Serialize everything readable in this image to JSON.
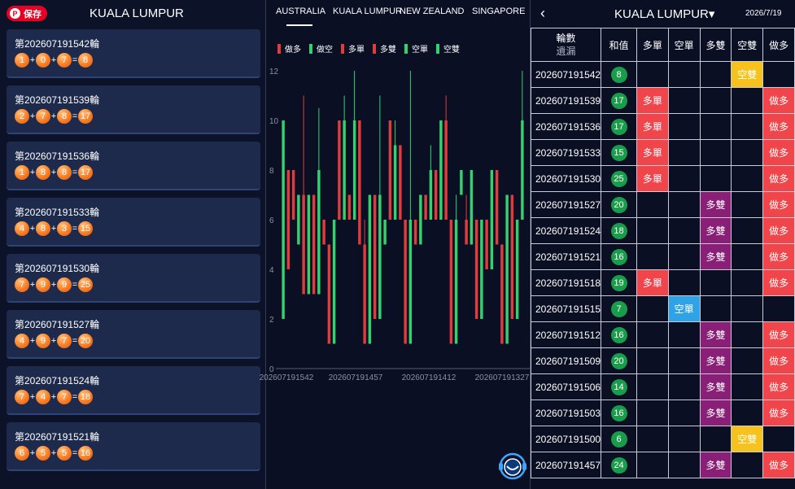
{
  "left_panel": {
    "save_label": "保存",
    "pin_glyph": "P",
    "title": "KUALA LUMPUR",
    "cards": [
      {
        "title": "第202607191542輪",
        "n1": "1",
        "n2": "0",
        "n3": "7",
        "sum": "8"
      },
      {
        "title": "第202607191539輪",
        "n1": "2",
        "n2": "7",
        "n3": "8",
        "sum": "17"
      },
      {
        "title": "第202607191536輪",
        "n1": "1",
        "n2": "8",
        "n3": "8",
        "sum": "17"
      },
      {
        "title": "第202607191533輪",
        "n1": "4",
        "n2": "8",
        "n3": "3",
        "sum": "15"
      },
      {
        "title": "第202607191530輪",
        "n1": "7",
        "n2": "9",
        "n3": "9",
        "sum": "25"
      },
      {
        "title": "第202607191527輪",
        "n1": "4",
        "n2": "9",
        "n3": "7",
        "sum": "20"
      },
      {
        "title": "第202607191524輪",
        "n1": "7",
        "n2": "4",
        "n3": "7",
        "sum": "18"
      },
      {
        "title": "第202607191521輪",
        "n1": "6",
        "n2": "5",
        "n3": "5",
        "sum": "16"
      }
    ],
    "plus": "+",
    "equals": "="
  },
  "middle_panel": {
    "tabs": [
      "AUSTRALIA",
      "KUALA LUMPUR",
      "NEW ZEALAND",
      "SINGAPORE"
    ],
    "active_tab": 0,
    "legend": [
      {
        "label": "做多",
        "color": "#e03c3c"
      },
      {
        "label": "做空",
        "color": "#35d06f"
      },
      {
        "label": "多單",
        "color": "#e03c3c"
      },
      {
        "label": "多雙",
        "color": "#e03c3c"
      },
      {
        "label": "空單",
        "color": "#35d06f"
      },
      {
        "label": "空雙",
        "color": "#35d06f"
      }
    ],
    "float_icon": "support-robot-icon"
  },
  "chart_data": {
    "type": "candlestick",
    "y_ticks": [
      "0",
      "2",
      "4",
      "6",
      "8",
      "10",
      "12"
    ],
    "ylim": [
      0,
      12
    ],
    "x_tick_labels": [
      "202607191542",
      "202607191457",
      "202607191412",
      "202607191327"
    ],
    "colors": {
      "up": "#35d06f",
      "down": "#e03c3c"
    },
    "candles": [
      {
        "o": 2,
        "c": 10,
        "h": 10,
        "l": 2,
        "up": true
      },
      {
        "o": 8,
        "c": 4,
        "h": 8,
        "l": 4,
        "up": false
      },
      {
        "o": 8,
        "c": 6,
        "h": 8,
        "l": 6,
        "up": false
      },
      {
        "o": 5,
        "c": 7,
        "h": 7,
        "l": 5,
        "up": true
      },
      {
        "o": 7,
        "c": 3,
        "h": 11,
        "l": 3,
        "up": false
      },
      {
        "o": 3,
        "c": 7,
        "h": 7,
        "l": 3,
        "up": true
      },
      {
        "o": 7,
        "c": 3,
        "h": 7,
        "l": 3,
        "up": false
      },
      {
        "o": 3,
        "c": 8,
        "h": 10.5,
        "l": 3,
        "up": true
      },
      {
        "o": 6,
        "c": 5,
        "h": 6,
        "l": 5,
        "up": false
      },
      {
        "o": 5,
        "c": 1,
        "h": 5,
        "l": 1,
        "up": false
      },
      {
        "o": 1,
        "c": 6,
        "h": 6,
        "l": 1,
        "up": true
      },
      {
        "o": 10,
        "c": 6,
        "h": 10,
        "l": 6,
        "up": false
      },
      {
        "o": 6,
        "c": 10,
        "h": 11,
        "l": 6,
        "up": true
      },
      {
        "o": 7,
        "c": 6,
        "h": 7,
        "l": 6,
        "up": false
      },
      {
        "o": 6,
        "c": 10,
        "h": 12,
        "l": 6,
        "up": true
      },
      {
        "o": 10,
        "c": 5,
        "h": 10,
        "l": 5,
        "up": false
      },
      {
        "o": 5,
        "c": 1,
        "h": 6,
        "l": 1,
        "up": false
      },
      {
        "o": 1,
        "c": 7,
        "h": 7,
        "l": 1,
        "up": true
      },
      {
        "o": 7,
        "c": 2,
        "h": 7,
        "l": 2,
        "up": false
      },
      {
        "o": 2,
        "c": 7,
        "h": 11,
        "l": 2,
        "up": true
      },
      {
        "o": 5,
        "c": 6,
        "h": 6,
        "l": 5,
        "up": true
      },
      {
        "o": 10,
        "c": 6,
        "h": 10,
        "l": 6,
        "up": false
      },
      {
        "o": 6,
        "c": 9,
        "h": 10,
        "l": 6,
        "up": true
      },
      {
        "o": 9,
        "c": 6,
        "h": 9,
        "l": 6,
        "up": false
      },
      {
        "o": 6,
        "c": 1,
        "h": 6,
        "l": 1,
        "up": false
      },
      {
        "o": 1,
        "c": 6,
        "h": 12,
        "l": 1,
        "up": true
      },
      {
        "o": 6,
        "c": 5,
        "h": 6,
        "l": 5,
        "up": false
      },
      {
        "o": 5,
        "c": 7,
        "h": 7,
        "l": 5,
        "up": true
      },
      {
        "o": 7,
        "c": 6,
        "h": 7,
        "l": 6,
        "up": false
      },
      {
        "o": 6,
        "c": 8,
        "h": 9,
        "l": 6,
        "up": true
      },
      {
        "o": 8,
        "c": 6,
        "h": 8,
        "l": 6,
        "up": false
      },
      {
        "o": 6,
        "c": 10,
        "h": 10,
        "l": 6,
        "up": true
      },
      {
        "o": 10,
        "c": 6,
        "h": 11,
        "l": 6,
        "up": false
      },
      {
        "o": 6,
        "c": 1,
        "h": 6,
        "l": 1,
        "up": false
      },
      {
        "o": 1,
        "c": 6,
        "h": 7,
        "l": 1,
        "up": true
      },
      {
        "o": 7,
        "c": 8,
        "h": 8,
        "l": 7,
        "up": true
      },
      {
        "o": 6,
        "c": 5,
        "h": 7,
        "l": 5,
        "up": false
      },
      {
        "o": 5,
        "c": 8,
        "h": 8,
        "l": 5,
        "up": true
      },
      {
        "o": 6,
        "c": 2,
        "h": 6,
        "l": 2,
        "up": false
      },
      {
        "o": 2,
        "c": 6,
        "h": 6,
        "l": 2,
        "up": true
      },
      {
        "o": 6,
        "c": 4,
        "h": 6,
        "l": 4,
        "up": false
      },
      {
        "o": 4,
        "c": 8,
        "h": 8,
        "l": 4,
        "up": true
      },
      {
        "o": 8,
        "c": 5,
        "h": 8,
        "l": 5,
        "up": false
      },
      {
        "o": 5,
        "c": 1,
        "h": 5,
        "l": 1,
        "up": false
      },
      {
        "o": 1,
        "c": 7,
        "h": 7,
        "l": 1,
        "up": true
      },
      {
        "o": 7,
        "c": 2,
        "h": 7,
        "l": 2,
        "up": false
      },
      {
        "o": 2,
        "c": 6,
        "h": 6,
        "l": 2,
        "up": true
      },
      {
        "o": 6,
        "c": 10,
        "h": 12,
        "l": 6,
        "up": true
      }
    ]
  },
  "right_panel": {
    "back_icon": "back-chevron-icon",
    "back_glyph": "‹",
    "title": "KUALA LUMPUR▾",
    "date": "2026/7/19",
    "headers": {
      "round": "輪數",
      "omit": "遺漏",
      "sum": "和值",
      "c1": "多單",
      "c2": "空單",
      "c3": "多雙",
      "c4": "空雙",
      "c5": "做多"
    },
    "rows": [
      {
        "round": "202607191542",
        "sum": "8",
        "c1": "",
        "c2": "",
        "c3": "",
        "c4": "空雙",
        "c5": ""
      },
      {
        "round": "202607191539",
        "sum": "17",
        "c1": "多單",
        "c2": "",
        "c3": "",
        "c4": "",
        "c5": "做多"
      },
      {
        "round": "202607191536",
        "sum": "17",
        "c1": "多單",
        "c2": "",
        "c3": "",
        "c4": "",
        "c5": "做多"
      },
      {
        "round": "202607191533",
        "sum": "15",
        "c1": "多單",
        "c2": "",
        "c3": "",
        "c4": "",
        "c5": "做多"
      },
      {
        "round": "202607191530",
        "sum": "25",
        "c1": "多單",
        "c2": "",
        "c3": "",
        "c4": "",
        "c5": "做多"
      },
      {
        "round": "202607191527",
        "sum": "20",
        "c1": "",
        "c2": "",
        "c3": "多雙",
        "c4": "",
        "c5": "做多"
      },
      {
        "round": "202607191524",
        "sum": "18",
        "c1": "",
        "c2": "",
        "c3": "多雙",
        "c4": "",
        "c5": "做多"
      },
      {
        "round": "202607191521",
        "sum": "16",
        "c1": "",
        "c2": "",
        "c3": "多雙",
        "c4": "",
        "c5": "做多"
      },
      {
        "round": "202607191518",
        "sum": "19",
        "c1": "多單",
        "c2": "",
        "c3": "",
        "c4": "",
        "c5": "做多"
      },
      {
        "round": "202607191515",
        "sum": "7",
        "c1": "",
        "c2": "空單",
        "c3": "",
        "c4": "",
        "c5": ""
      },
      {
        "round": "202607191512",
        "sum": "16",
        "c1": "",
        "c2": "",
        "c3": "多雙",
        "c4": "",
        "c5": "做多"
      },
      {
        "round": "202607191509",
        "sum": "20",
        "c1": "",
        "c2": "",
        "c3": "多雙",
        "c4": "",
        "c5": "做多"
      },
      {
        "round": "202607191506",
        "sum": "14",
        "c1": "",
        "c2": "",
        "c3": "多雙",
        "c4": "",
        "c5": "做多"
      },
      {
        "round": "202607191503",
        "sum": "16",
        "c1": "",
        "c2": "",
        "c3": "多雙",
        "c4": "",
        "c5": "做多"
      },
      {
        "round": "202607191500",
        "sum": "6",
        "c1": "",
        "c2": "",
        "c3": "",
        "c4": "空雙",
        "c5": ""
      },
      {
        "round": "202607191457",
        "sum": "24",
        "c1": "",
        "c2": "",
        "c3": "多雙",
        "c4": "",
        "c5": "做多"
      }
    ],
    "tag_colors": {
      "多單": "tag-red",
      "做多": "tag-red",
      "多雙": "tag-purple",
      "空單": "tag-blue",
      "空雙": "tag-yellow"
    }
  }
}
